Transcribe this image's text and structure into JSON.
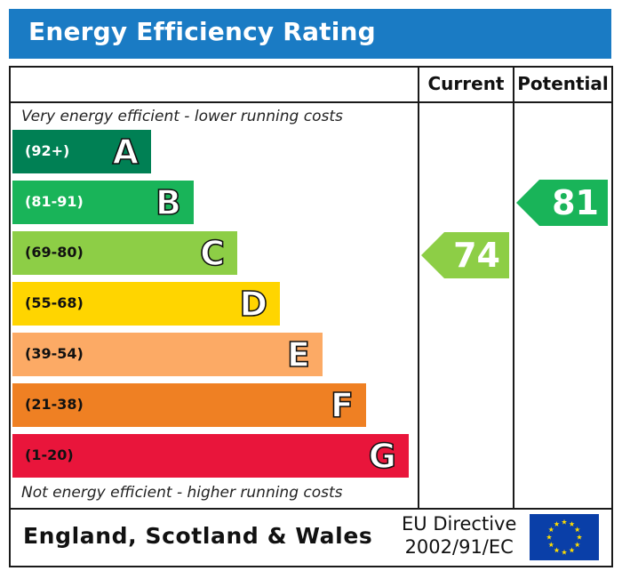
{
  "header": {
    "title": "Energy Efficiency Rating"
  },
  "columns": {
    "current": "Current",
    "potential": "Potential"
  },
  "notes": {
    "top": "Very energy efficient - lower running costs",
    "bottom": "Not energy efficient - higher running costs"
  },
  "footer": {
    "country": "England, Scotland & Wales",
    "directive_line1": "EU Directive",
    "directive_line2": "2002/91/EC"
  },
  "icons": {
    "flag": "eu-flag-icon"
  },
  "chart_data": {
    "type": "bar",
    "title": "Energy Efficiency Rating",
    "bands": [
      {
        "letter": "A",
        "range": "(92+)",
        "color": "#008054",
        "range_color": "#ffffff"
      },
      {
        "letter": "B",
        "range": "(81-91)",
        "color": "#19b459",
        "range_color": "#ffffff"
      },
      {
        "letter": "C",
        "range": "(69-80)",
        "color": "#8dce46",
        "range_color": "#111111"
      },
      {
        "letter": "D",
        "range": "(55-68)",
        "color": "#ffd500",
        "range_color": "#111111"
      },
      {
        "letter": "E",
        "range": "(39-54)",
        "color": "#fcaa65",
        "range_color": "#111111"
      },
      {
        "letter": "F",
        "range": "(21-38)",
        "color": "#ef8023",
        "range_color": "#111111"
      },
      {
        "letter": "G",
        "range": "(1-20)",
        "color": "#e9153b",
        "range_color": "#111111"
      }
    ],
    "current": {
      "value": 74,
      "band": "C",
      "color": "#8dce46"
    },
    "potential": {
      "value": 81,
      "band": "B",
      "color": "#19b459"
    }
  }
}
